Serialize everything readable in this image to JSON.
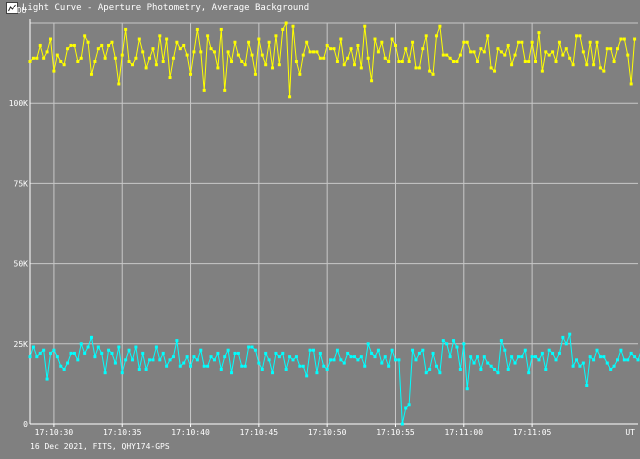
{
  "window": {
    "title": "Light Curve - Aperture Photometry, Average Background"
  },
  "footer": {
    "caption": "16 Dec 2021, FITS, QHY174-GPS"
  },
  "chart_data": {
    "type": "line",
    "title": "Light Curve - Aperture Photometry, Average Background",
    "ylabel": "ADU",
    "xlabel": "UT",
    "ylim": [
      0,
      125000
    ],
    "yticks": [
      0,
      25000,
      50000,
      75000,
      100000
    ],
    "ytick_labels": [
      "0",
      "25K",
      "50K",
      "75K",
      "100K"
    ],
    "xtick_labels": [
      "17:10:30",
      "17:10:35",
      "17:10:40",
      "17:10:45",
      "17:10:50",
      "17:10:55",
      "17:11:00",
      "17:11:05"
    ],
    "xlim_frames": [
      0,
      178
    ],
    "frames_per_tick": 20,
    "first_tick_frame": 7,
    "grid": true,
    "background": "#808080",
    "grid_color": "#c8c8c8",
    "series": [
      {
        "color": "#ffff00",
        "values": [
          113000,
          114000,
          114000,
          118000,
          114000,
          116000,
          120000,
          110000,
          115000,
          113000,
          112000,
          117000,
          118000,
          118000,
          113000,
          114000,
          121000,
          119000,
          109000,
          113000,
          117000,
          118000,
          114000,
          118000,
          119000,
          114000,
          106000,
          115000,
          123000,
          113000,
          112000,
          114000,
          120000,
          116000,
          111000,
          114000,
          117000,
          112000,
          121000,
          113000,
          120000,
          108000,
          114000,
          119000,
          117000,
          118000,
          115000,
          109000,
          116000,
          123000,
          116000,
          104000,
          121000,
          117000,
          116000,
          111000,
          123000,
          104000,
          116000,
          113000,
          119000,
          115000,
          113000,
          112000,
          119000,
          115000,
          109000,
          120000,
          115000,
          112000,
          119000,
          111000,
          121000,
          112000,
          123000,
          125000,
          102000,
          124000,
          113000,
          109000,
          115000,
          119000,
          116000,
          116000,
          116000,
          114000,
          114000,
          118000,
          117000,
          117000,
          113000,
          120000,
          112000,
          114000,
          117000,
          112000,
          118000,
          111000,
          124000,
          114000,
          107000,
          120000,
          116000,
          119000,
          114000,
          113000,
          120000,
          118000,
          113000,
          113000,
          117000,
          113000,
          119000,
          111000,
          111000,
          117000,
          121000,
          110000,
          109000,
          121000,
          124000,
          115000,
          115000,
          114000,
          113000,
          113000,
          115000,
          119000,
          119000,
          116000,
          116000,
          113000,
          117000,
          116000,
          121000,
          111000,
          110000,
          117000,
          116000,
          115000,
          118000,
          112000,
          115000,
          119000,
          119000,
          113000,
          113000,
          119000,
          113000,
          122000,
          110000,
          116000,
          115000,
          116000,
          113000,
          119000,
          115000,
          117000,
          114000,
          112000,
          121000,
          121000,
          116000,
          112000,
          119000,
          112000,
          119000,
          111000,
          110000,
          117000,
          117000,
          113000,
          117000,
          120000,
          120000,
          115000,
          106000,
          120000
        ],
        "markers": true
      },
      {
        "color": "#00ffff",
        "values": [
          21000,
          24000,
          21000,
          22000,
          23000,
          14000,
          22000,
          23000,
          21000,
          18000,
          17000,
          19000,
          22000,
          22000,
          20000,
          25000,
          22000,
          24000,
          27000,
          21000,
          24000,
          22000,
          16000,
          23000,
          22000,
          19000,
          24000,
          16000,
          20000,
          23000,
          20000,
          24000,
          17000,
          22000,
          17000,
          20000,
          20000,
          24000,
          20000,
          22000,
          18000,
          20000,
          21000,
          26000,
          18000,
          19000,
          21000,
          18000,
          21000,
          20000,
          23000,
          18000,
          18000,
          21000,
          20000,
          22000,
          17000,
          21000,
          23000,
          16000,
          22000,
          22000,
          18000,
          18000,
          24000,
          24000,
          23000,
          19000,
          17000,
          22000,
          20000,
          16000,
          22000,
          21000,
          22000,
          17000,
          21000,
          20000,
          21000,
          18000,
          18000,
          15000,
          23000,
          23000,
          16000,
          22000,
          18000,
          17000,
          20000,
          20000,
          23000,
          20000,
          19000,
          22000,
          21000,
          21000,
          20000,
          21000,
          18000,
          25000,
          22000,
          21000,
          23000,
          19000,
          21000,
          18000,
          23000,
          20000,
          20000,
          0,
          5000,
          6000,
          23000,
          20000,
          22000,
          23000,
          16000,
          17000,
          22000,
          18000,
          16000,
          26000,
          25000,
          21000,
          26000,
          24000,
          17000,
          25000,
          11000,
          21000,
          19000,
          21000,
          17000,
          21000,
          19000,
          18000,
          17000,
          16000,
          26000,
          23000,
          17000,
          21000,
          19000,
          21000,
          21000,
          23000,
          16000,
          21000,
          21000,
          20000,
          22000,
          17000,
          23000,
          22000,
          20000,
          22000,
          27000,
          25000,
          28000,
          18000,
          20000,
          18000,
          19000,
          12000,
          21000,
          20000,
          23000,
          21000,
          21000,
          19000,
          17000,
          18000,
          20000,
          23000,
          20000,
          20000,
          22000,
          21000,
          20000,
          23000
        ],
        "markers": true
      }
    ]
  }
}
